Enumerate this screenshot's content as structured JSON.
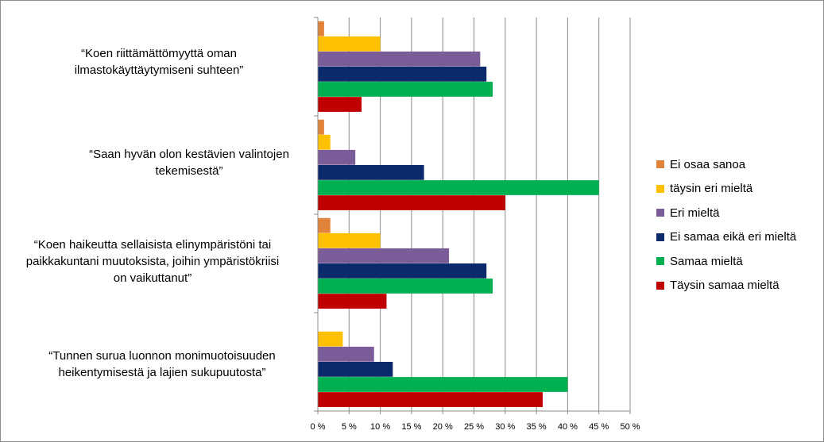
{
  "chart_data": {
    "type": "bar",
    "orientation": "horizontal",
    "title": "",
    "xlabel": "",
    "ylabel": "",
    "xlim": [
      0,
      50
    ],
    "x_ticks": [
      "0 %",
      "5 %",
      "10 %",
      "15 %",
      "20 %",
      "25 %",
      "30 %",
      "35 %",
      "40 %",
      "45 %",
      "50 %"
    ],
    "grid": "vertical",
    "legend_position": "right",
    "categories": [
      "“Koen riittämättömyyttä oman ilmastokäyttäytymiseni suhteen”",
      "“Saan hyvän olon kestävien valintojen tekemisestä”",
      "“Koen haikeutta sellaisista elinympäristöni tai paikkakuntani muutoksista, joihin ympäristökriisi on vaikuttanut”",
      "“Tunnen surua luonnon monimuotoisuuden heikentymisestä ja lajien sukupuutosta”"
    ],
    "category_lines": [
      [
        "“Koen riittämättömyyttä oman",
        "ilmastokäyttäytymiseni suhteen”"
      ],
      [
        "“Saan hyvän olon kestävien valintojen",
        "tekemisestä”"
      ],
      [
        "“Koen haikeutta sellaisista  elinympäristöni tai",
        "paikkakuntani muutoksista, joihin ympäristökriisi",
        "on vaikuttanut”"
      ],
      [
        "“Tunnen surua luonnon monimuotoisuuden",
        "heikentymisestä ja lajien sukupuutosta”"
      ]
    ],
    "series": [
      {
        "name": "Ei osaa sanoa",
        "color": "#e0823a",
        "values": [
          1,
          1,
          2,
          0
        ]
      },
      {
        "name": "täysin eri mieltä",
        "color": "#ffc000",
        "values": [
          10,
          2,
          10,
          4
        ]
      },
      {
        "name": "Eri mieltä",
        "color": "#7a5c99",
        "values": [
          26,
          6,
          21,
          9
        ]
      },
      {
        "name": "Ei samaa eikä eri mieltä",
        "color": "#0b2a6b",
        "values": [
          27,
          17,
          27,
          12
        ]
      },
      {
        "name": "Samaa mieltä",
        "color": "#00b050",
        "values": [
          28,
          45,
          28,
          40
        ]
      },
      {
        "name": "Täysin samaa mieltä",
        "color": "#c00000",
        "values": [
          7,
          30,
          11,
          36
        ]
      }
    ]
  }
}
